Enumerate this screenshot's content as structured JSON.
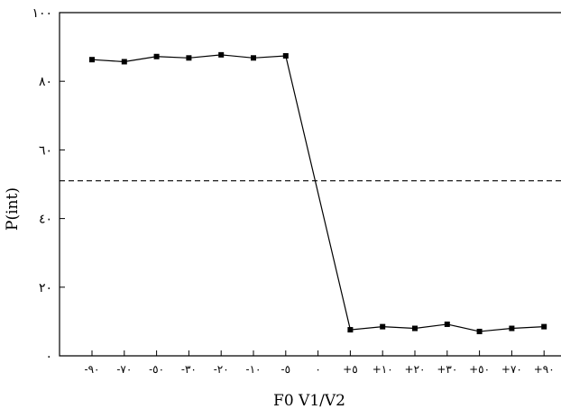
{
  "chart_data": {
    "type": "line",
    "title": "",
    "xlabel": "F0 V1/V2",
    "ylabel": "P(int)",
    "categories": [
      "-٩٠",
      "-٧٠",
      "-٥٠",
      "-٣٠",
      "-٢٠",
      "-١٠",
      "-٥",
      "٠",
      "+٥",
      "+١٠",
      "+٢٠",
      "+٣٠",
      "+٥٠",
      "+٧٠",
      "+٩٠"
    ],
    "x": [
      -90,
      -70,
      -50,
      -30,
      -20,
      -10,
      -5,
      0,
      5,
      10,
      20,
      30,
      50,
      70,
      90
    ],
    "ylim": [
      0,
      100
    ],
    "yticks": [
      0,
      20,
      40,
      60,
      80,
      100
    ],
    "ytick_labels": [
      "٠",
      "٢٠",
      "٤٠",
      "٦٠",
      "٨٠",
      "١٠٠"
    ],
    "grid": false,
    "series": [
      {
        "x": [
          -90,
          -70,
          -50,
          -30,
          -20,
          -10,
          -5,
          5,
          10,
          20,
          30,
          50,
          70,
          90
        ],
        "values": [
          86.3,
          85.7,
          87.2,
          86.8,
          87.7,
          86.8,
          87.4,
          7.6,
          8.5,
          8.0,
          9.2,
          7.1,
          8.0,
          8.5
        ]
      }
    ],
    "reference_line": {
      "y": 51,
      "style": "dashed"
    }
  }
}
